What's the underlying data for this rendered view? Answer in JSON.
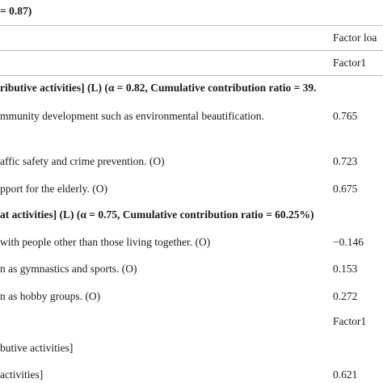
{
  "table": {
    "caption_fragment": "= 0.87)",
    "header": {
      "group_label": "Factor loa",
      "column_label": "Factor1"
    },
    "section1": {
      "title": "ributive activities] (L) (α = 0.82, Cumulative contribution ratio = 39.",
      "rows": [
        {
          "item": "mmunity development such as environmental beautification.",
          "value": "0.765"
        },
        {
          "item": "affic safety and crime prevention. (O)",
          "value": "0.723"
        },
        {
          "item": "pport for the elderly. (O)",
          "value": "0.675"
        }
      ]
    },
    "section2": {
      "title": "at activities] (L) (α = 0.75, Cumulative contribution ratio = 60.25%)",
      "rows": [
        {
          "item": "with people other than those living together. (O)",
          "value": "−0.146"
        },
        {
          "item": "n as gymnastics and sports. (O)",
          "value": "0.153"
        },
        {
          "item": "n as hobby groups. (O)",
          "value": "0.272"
        }
      ]
    },
    "lower": {
      "column_label": "Factor1",
      "rows": [
        {
          "item": "butive activities]",
          "value": ""
        },
        {
          "item": "activities]",
          "value": "0.621"
        }
      ]
    }
  }
}
